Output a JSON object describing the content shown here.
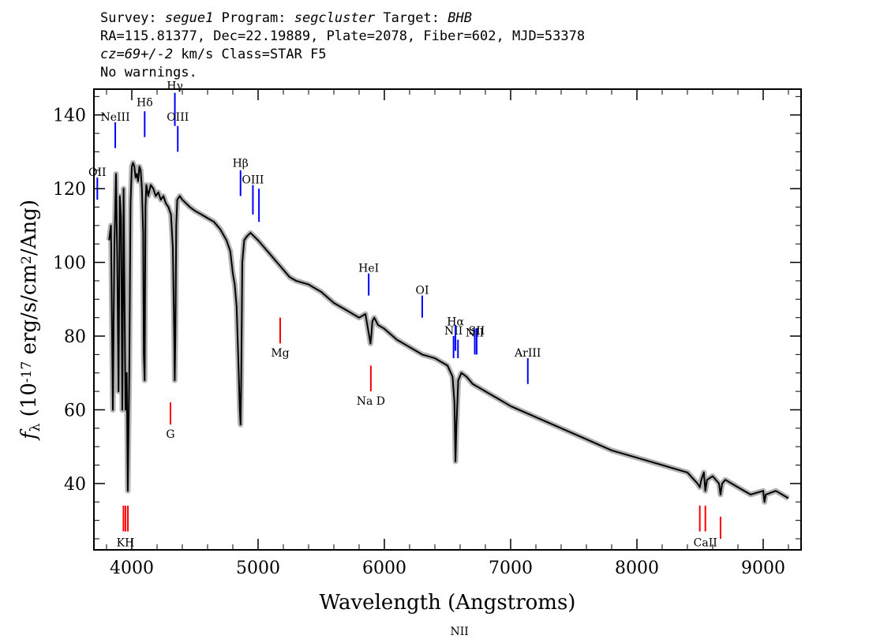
{
  "header": {
    "survey_label": "Survey:",
    "survey": "segue1",
    "program_label": "Program:",
    "program": "segcluster",
    "target_label": "Target:",
    "target": "BHB",
    "line2": "RA=115.81377, Dec=22.19889, Plate=2078, Fiber=602, MJD=53378",
    "cz": "cz=69+/-2",
    "cz_rest": " km/s Class=STAR F5",
    "line4": "No warnings."
  },
  "chart_data": {
    "type": "line",
    "xlabel": "Wavelength (Angstroms)",
    "ylabel": "f_λ (10^-17 erg/s/cm^2/Ang)",
    "xlim": [
      3700,
      9300
    ],
    "ylim": [
      22,
      147
    ],
    "xticks": [
      4000,
      5000,
      6000,
      7000,
      8000,
      9000
    ],
    "yticks": [
      40,
      60,
      80,
      100,
      120,
      140
    ],
    "series": [
      {
        "color": "#000000",
        "error_color": "#b4b4b4",
        "x": [
          3820,
          3835,
          3850,
          3862,
          3875,
          3885,
          3895,
          3905,
          3915,
          3925,
          3935,
          3950,
          3960,
          3968,
          3980,
          3990,
          4000,
          4010,
          4020,
          4030,
          4040,
          4050,
          4060,
          4070,
          4080,
          4090,
          4095,
          4102,
          4108,
          4115,
          4130,
          4150,
          4170,
          4190,
          4210,
          4230,
          4250,
          4270,
          4290,
          4310,
          4325,
          4335,
          4340,
          4345,
          4352,
          4360,
          4380,
          4400,
          4430,
          4460,
          4500,
          4550,
          4600,
          4650,
          4700,
          4750,
          4780,
          4800,
          4815,
          4830,
          4845,
          4855,
          4861,
          4866,
          4875,
          4890,
          4910,
          4940,
          5000,
          5050,
          5100,
          5150,
          5200,
          5250,
          5300,
          5400,
          5500,
          5600,
          5700,
          5800,
          5850,
          5880,
          5890,
          5896,
          5905,
          5920,
          5950,
          6000,
          6100,
          6200,
          6300,
          6400,
          6500,
          6540,
          6555,
          6563,
          6570,
          6585,
          6610,
          6650,
          6700,
          6800,
          6900,
          7000,
          7200,
          7400,
          7600,
          7800,
          8000,
          8200,
          8400,
          8480,
          8498,
          8510,
          8530,
          8542,
          8555,
          8600,
          8650,
          8662,
          8675,
          8700,
          8800,
          8900,
          9000,
          9010,
          9020,
          9100,
          9200
        ],
        "y": [
          106,
          110,
          60,
          104,
          124,
          100,
          65,
          118,
          112,
          60,
          120,
          60,
          70,
          38,
          70,
          116,
          126,
          127,
          126,
          123,
          124,
          122,
          126,
          125,
          120,
          108,
          75,
          68,
          115,
          121,
          118,
          121,
          120,
          118,
          119,
          117,
          118,
          116,
          115,
          113,
          104,
          82,
          68,
          80,
          110,
          117,
          118,
          117,
          116,
          115,
          114,
          113,
          112,
          111,
          109,
          106,
          103,
          97,
          94,
          88,
          72,
          60,
          56,
          68,
          100,
          106,
          107,
          108,
          106,
          104,
          102,
          100,
          98,
          96,
          95,
          94,
          92,
          89,
          87,
          85,
          86,
          80,
          78,
          80,
          84,
          85,
          83,
          82,
          79,
          77,
          75,
          74,
          72,
          69,
          62,
          46,
          55,
          68,
          70,
          69,
          67,
          65,
          63,
          61,
          58,
          55,
          52,
          49,
          47,
          45,
          43,
          40,
          39,
          41,
          43,
          38,
          41,
          42,
          40,
          37,
          40,
          41,
          39,
          37,
          38,
          35,
          37,
          38,
          36
        ]
      }
    ],
    "annotations": [
      {
        "label": "NeIII",
        "x": 3869,
        "color": "blue",
        "line_y": [
          131,
          138
        ],
        "label_y": 139.5
      },
      {
        "label": "Hδ",
        "x": 4102,
        "color": "blue",
        "line_y": [
          134,
          141
        ],
        "label_y": 143.5
      },
      {
        "label": "Hγ",
        "x": 4341,
        "color": "blue",
        "line_y": [
          137,
          146
        ],
        "label_y": 148
      },
      {
        "label": "OIII",
        "x": 4364,
        "color": "blue",
        "line_y": [
          130,
          137
        ],
        "label_y": 139.5
      },
      {
        "label": "OII",
        "x": 3727,
        "color": "blue",
        "line_y": [
          117,
          123
        ],
        "label_y": 124.5
      },
      {
        "label": "Hβ",
        "x": 4861,
        "color": "blue",
        "line_y": [
          118,
          125
        ],
        "label_y": 127
      },
      {
        "label": "OIII",
        "x": 4959,
        "color": "blue",
        "line_y": [
          113,
          121
        ],
        "label_y": 122.5
      },
      {
        "label": "",
        "x": 5007,
        "color": "blue",
        "line_y": [
          111,
          120
        ],
        "label_y": 0
      },
      {
        "label": "HeI",
        "x": 5876,
        "color": "blue",
        "line_y": [
          91,
          97
        ],
        "label_y": 98.5
      },
      {
        "label": "OI",
        "x": 6300,
        "color": "blue",
        "line_y": [
          85,
          91
        ],
        "label_y": 92.5
      },
      {
        "label": "NII",
        "x": 6548,
        "color": "blue",
        "line_y": [
          74,
          80
        ],
        "label_y": 81.5
      },
      {
        "label": "Hα",
        "x": 6563,
        "color": "blue",
        "line_y": [
          76,
          83
        ],
        "label_y": 84
      },
      {
        "label": "",
        "x": 6583,
        "color": "blue",
        "line_y": [
          74,
          79
        ],
        "label_y": 0
      },
      {
        "label": "NII",
        "x": 6595,
        "color": "blue",
        "line_y": [
          0,
          0
        ],
        "label_y": 0
      },
      {
        "label": "NII",
        "x": 6716,
        "color": "blue",
        "line_y": [
          75,
          82
        ],
        "label_y": 81
      },
      {
        "label": "SII",
        "x": 6731,
        "color": "blue",
        "line_y": [
          75,
          82
        ],
        "label_y": 81.5
      },
      {
        "label": "ArIII",
        "x": 7136,
        "color": "blue",
        "line_y": [
          67,
          74
        ],
        "label_y": 75.5
      },
      {
        "label": "KH",
        "x": 3950,
        "color": "red",
        "line_y": [
          27,
          34
        ],
        "label_y": 24
      },
      {
        "label": "",
        "x": 3934,
        "color": "red",
        "line_y": [
          27,
          34
        ],
        "label_y": 0
      },
      {
        "label": "",
        "x": 3969,
        "color": "red",
        "line_y": [
          27,
          34
        ],
        "label_y": 0
      },
      {
        "label": "G",
        "x": 4306,
        "color": "red",
        "line_y": [
          56,
          62
        ],
        "label_y": 53.5
      },
      {
        "label": "Mg",
        "x": 5175,
        "color": "red",
        "line_y": [
          78,
          85
        ],
        "label_y": 75.5
      },
      {
        "label": "Na D",
        "x": 5893,
        "color": "red",
        "line_y": [
          65,
          72
        ],
        "label_y": 62.5
      },
      {
        "label": "CaII",
        "x": 8542,
        "color": "red",
        "line_y": [
          27,
          34
        ],
        "label_y": 24
      },
      {
        "label": "",
        "x": 8498,
        "color": "red",
        "line_y": [
          27,
          34
        ],
        "label_y": 0
      },
      {
        "label": "",
        "x": 8662,
        "color": "red",
        "line_y": [
          25,
          31
        ],
        "label_y": 0
      }
    ]
  }
}
